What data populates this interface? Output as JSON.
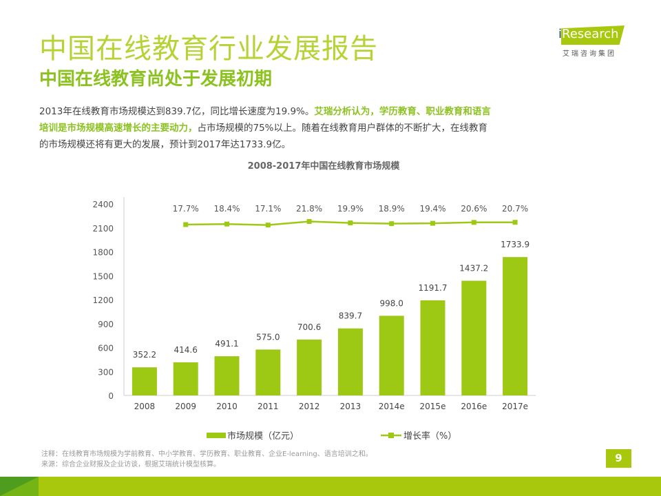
{
  "header": {
    "title": "中国在线教育行业发展报告",
    "subtitle": "中国在线教育尚处于发展初期"
  },
  "logo": {
    "brand_i": "i",
    "brand_rest": "Research",
    "cn": "艾瑞咨询集团"
  },
  "paragraph": {
    "part1": "2013年在线教育市场规模达到839.7亿，同比增长速度为19.9%。",
    "highlight": "艾瑞分析认为，学历教育、职业教育和语言培训是市场规模高速增长的主要动力，",
    "part2": "占市场规模的75%以上。随着在线教育用户群体的不断扩大，在线教育的市场规模还将有更大的发展，预计到2017年达1733.9亿。"
  },
  "chart_data": {
    "type": "bar+line",
    "title": "2008-2017年中国在线教育市场规模",
    "categories": [
      "2008",
      "2009",
      "2010",
      "2011",
      "2012",
      "2013",
      "2014e",
      "2015e",
      "2016e",
      "2017e"
    ],
    "series": [
      {
        "name": "市场规模（亿元）",
        "type": "bar",
        "values": [
          352.2,
          414.6,
          491.1,
          575.0,
          700.6,
          839.7,
          998.0,
          1191.7,
          1437.2,
          1733.9
        ]
      },
      {
        "name": "增长率（%）",
        "type": "line",
        "values": [
          null,
          17.7,
          18.4,
          17.1,
          21.8,
          19.9,
          18.9,
          19.4,
          20.6,
          20.7
        ]
      }
    ],
    "yticks": [
      0,
      300,
      600,
      900,
      1200,
      1500,
      1800,
      2100,
      2400
    ],
    "ylim": [
      0,
      2400
    ],
    "legend": "bottom",
    "colors": {
      "bar": "#9dc814",
      "line": "#9dc814"
    }
  },
  "notes": {
    "note": "注释：在线教育市场规模为学前教育、中小学教育、学历教育、职业教育、企业E-learning、语言培训之和。",
    "source": "来源：综合企业财报及企业访谈，根据艾瑞统计模型核算。"
  },
  "page_number": "9"
}
